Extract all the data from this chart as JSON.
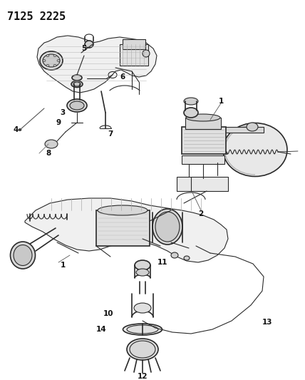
{
  "title": "7125 2225",
  "bg": "#ffffff",
  "line_color": "#2a2a2a",
  "label_color": "#111111",
  "title_fontsize": 11,
  "label_fontsize": 7.5,
  "lw": 0.8
}
